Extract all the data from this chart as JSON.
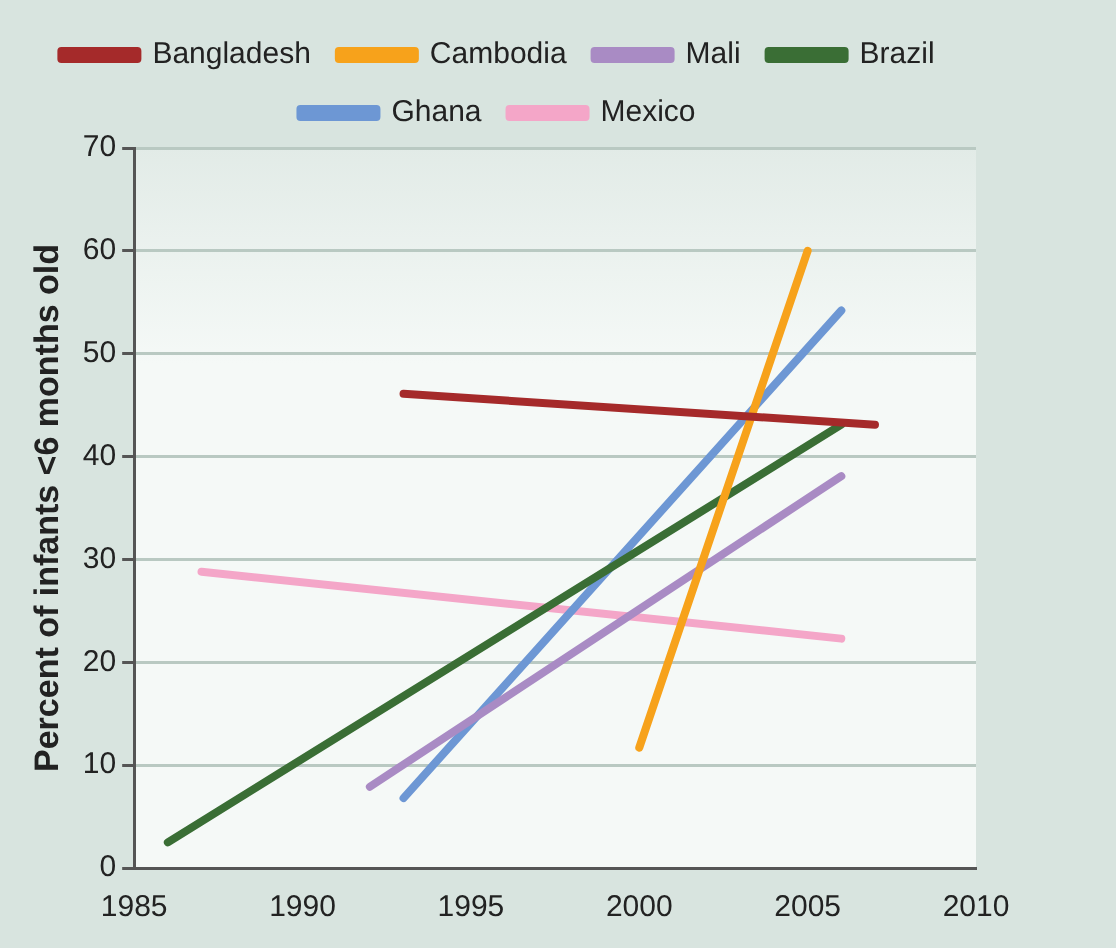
{
  "chart_data": {
    "type": "line",
    "ylabel": "Percent of infants <6 months old",
    "xlim": [
      1985,
      2010
    ],
    "xticks": [
      1985,
      1990,
      1995,
      2000,
      2005,
      2010
    ],
    "ylim": [
      0,
      70
    ],
    "yticks": [
      0,
      10,
      20,
      30,
      40,
      50,
      60,
      70
    ],
    "grid": "y",
    "legend": "top",
    "marker": "none",
    "line_style": "solid",
    "series": [
      {
        "name": "Bangladesh",
        "color": "#a52a2a",
        "x": [
          1993,
          2007
        ],
        "values": [
          46.1,
          43.1
        ]
      },
      {
        "name": "Cambodia",
        "color": "#f7a21b",
        "x": [
          2000,
          2005
        ],
        "values": [
          11.7,
          60
        ]
      },
      {
        "name": "Mali",
        "color": "#a98bc4",
        "x": [
          1992,
          2006
        ],
        "values": [
          7.9,
          38.1
        ]
      },
      {
        "name": "Brazil",
        "color": "#3a6e35",
        "x": [
          1986,
          2006
        ],
        "values": [
          2.5,
          43.1
        ]
      },
      {
        "name": "Ghana",
        "color": "#6d97d4",
        "x": [
          1993,
          2006
        ],
        "values": [
          6.8,
          54.2
        ]
      },
      {
        "name": "Mexico",
        "color": "#f4a6c8",
        "x": [
          1987,
          2006
        ],
        "values": [
          28.8,
          22.3
        ]
      }
    ]
  }
}
